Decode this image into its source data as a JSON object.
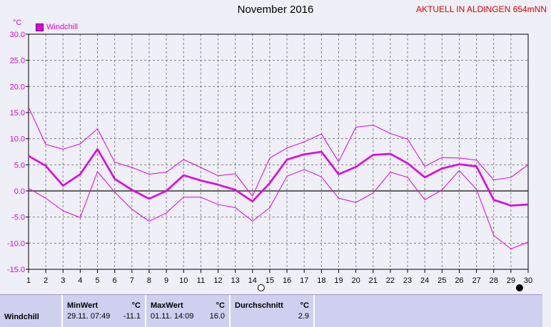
{
  "header": {
    "title": "November 2016",
    "station": "AKTUELL IN ALDINGEN 654mNN"
  },
  "unit": "°C",
  "legend": {
    "label": "Windchill",
    "color": "#e000e0"
  },
  "colors": {
    "series": "#e000e0",
    "background": "#efeff7",
    "grid": "#808080",
    "zero_line": "#606060",
    "stats_bg": "#cfcff0"
  },
  "stats": {
    "row_label": "Windchill",
    "min_header": "MinWert",
    "max_header": "MaxWert",
    "avg_header": "Durchschnitt",
    "unit": "°C",
    "min_time": "29.11.  07:49",
    "min_value": "-11.1",
    "max_time": "01.11.  14:09",
    "max_value": "16.0",
    "avg_value": "2.9"
  },
  "chart_data": {
    "type": "line",
    "title": "November 2016",
    "ylabel": "°C",
    "ylim": [
      -15,
      30
    ],
    "xlim": [
      1,
      30
    ],
    "grid": true,
    "legend_position": "top-left",
    "y_ticks": [
      "30.0",
      "25.0",
      "20.0",
      "15.0",
      "10.0",
      "5.0",
      "0.0",
      "-5.0",
      "-10.0",
      "-15.0"
    ],
    "x": [
      1,
      2,
      3,
      4,
      5,
      6,
      7,
      8,
      9,
      10,
      11,
      12,
      13,
      14,
      15,
      16,
      17,
      18,
      19,
      20,
      21,
      22,
      23,
      24,
      25,
      26,
      27,
      28,
      29,
      30
    ],
    "x_tick_labels": [
      "1",
      "2",
      "3",
      "4",
      "5",
      "6",
      "7",
      "8",
      "9",
      "10",
      "11",
      "12",
      "13",
      "14",
      "15",
      "16",
      "17",
      "18",
      "19",
      "20",
      "21",
      "22",
      "23",
      "24",
      "25",
      "26",
      "27",
      "28",
      "29",
      "30"
    ],
    "series": [
      {
        "name": "Windchill",
        "role": "average",
        "values": [
          6.7,
          4.8,
          1.0,
          3.2,
          8.0,
          2.3,
          0.2,
          -1.5,
          0.0,
          3.0,
          2.0,
          1.2,
          0.2,
          -2.0,
          1.5,
          6.0,
          7.0,
          7.5,
          3.2,
          4.6,
          6.9,
          7.1,
          5.3,
          2.6,
          4.3,
          5.1,
          4.7,
          -1.7,
          -2.8,
          -2.6
        ]
      },
      {
        "role": "max",
        "values": [
          16.0,
          8.9,
          8.0,
          9.0,
          11.9,
          5.5,
          4.5,
          3.2,
          3.6,
          6.0,
          4.5,
          2.9,
          3.3,
          -1.0,
          6.3,
          8.2,
          9.4,
          10.9,
          5.6,
          12.2,
          12.6,
          11.0,
          9.9,
          4.7,
          6.4,
          6.3,
          5.9,
          2.1,
          2.6,
          5.0
        ]
      },
      {
        "role": "min",
        "values": [
          0.5,
          -1.4,
          -3.8,
          -5.1,
          3.7,
          -0.2,
          -3.5,
          -5.8,
          -4.2,
          -1.2,
          -1.2,
          -2.6,
          -3.2,
          -5.8,
          -3.2,
          2.8,
          4.1,
          2.7,
          -1.4,
          -2.2,
          -0.4,
          3.6,
          2.6,
          -1.7,
          0.2,
          3.9,
          0.3,
          -8.5,
          -11.1,
          -9.8
        ]
      }
    ],
    "markers": [
      {
        "x": 14.5,
        "symbol": "new-moon-open-circle"
      },
      {
        "x": 29.5,
        "symbol": "full-moon-filled-circle"
      }
    ]
  }
}
